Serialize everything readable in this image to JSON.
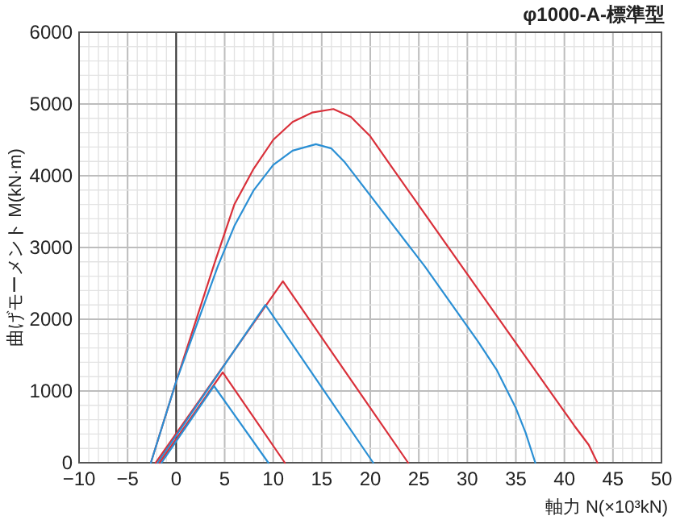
{
  "chart_data": {
    "type": "line",
    "title": "φ1000-A-標準型",
    "xlabel": "軸力 N(×10³kN)",
    "ylabel": "曲げモーメント M(kN·m)",
    "xlim": [
      -10,
      50
    ],
    "ylim": [
      0,
      6000
    ],
    "xticks": [
      {
        "value": -10,
        "label": "−10"
      },
      {
        "value": -5,
        "label": "−5"
      },
      0,
      5,
      10,
      15,
      20,
      25,
      30,
      35,
      40,
      45,
      50
    ],
    "yticks": [
      0,
      1000,
      2000,
      3000,
      4000,
      5000,
      6000
    ],
    "grid": true,
    "ref_lines": [
      {
        "axis": "x",
        "value": 0,
        "color": "#333333"
      }
    ],
    "series": [
      {
        "color": "#d9303a",
        "x": [
          -2.6,
          0,
          4,
          6,
          8,
          10,
          12,
          14,
          16.2,
          18,
          20,
          21.8,
          38.6,
          41,
          42.5,
          43.4
        ],
        "values": [
          0,
          1130,
          2800,
          3600,
          4100,
          4500,
          4750,
          4880,
          4930,
          4820,
          4550,
          4200,
          980,
          520,
          250,
          0
        ]
      },
      {
        "color": "#2a8fd4",
        "x": [
          -2.6,
          0,
          4.3,
          6,
          8,
          10,
          12,
          14.4,
          16,
          17.3,
          25.6,
          31.1,
          33,
          35,
          36,
          37
        ],
        "values": [
          0,
          1130,
          2740,
          3300,
          3800,
          4150,
          4350,
          4440,
          4380,
          4200,
          2740,
          1690,
          1300,
          760,
          420,
          0
        ]
      },
      {
        "color": "#d9303a",
        "x": [
          -2.1,
          11,
          23.9
        ],
        "values": [
          0,
          2530,
          0
        ]
      },
      {
        "color": "#2a8fd4",
        "x": [
          -1.9,
          9.2,
          20.3
        ],
        "values": [
          0,
          2200,
          0
        ]
      },
      {
        "color": "#d9303a",
        "x": [
          -1.7,
          4.8,
          11.2
        ],
        "values": [
          0,
          1260,
          0
        ]
      },
      {
        "color": "#2a8fd4",
        "x": [
          -1.5,
          3.9,
          9.5
        ],
        "values": [
          0,
          1070,
          0
        ]
      }
    ]
  }
}
